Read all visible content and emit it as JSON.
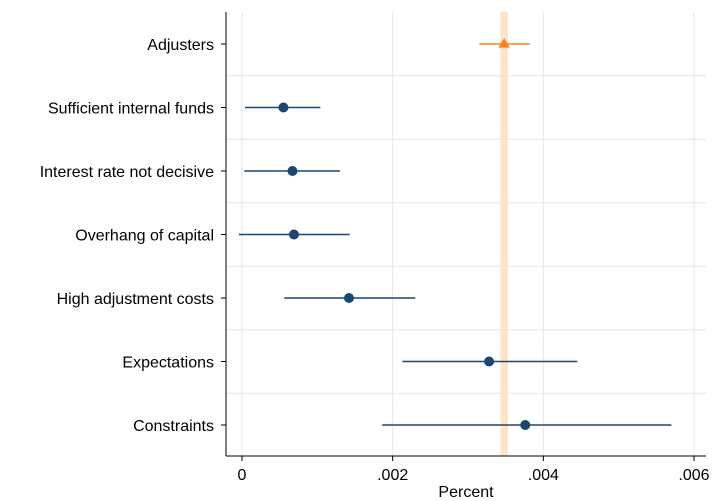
{
  "chart_data": {
    "type": "scatter",
    "title": "",
    "xlabel": "Percent",
    "ylabel": "",
    "xlim": [
      0,
      0.006
    ],
    "xticks": [
      {
        "value": 0,
        "label": "0"
      },
      {
        "value": 0.002,
        "label": ".002"
      },
      {
        "value": 0.004,
        "label": ".004"
      },
      {
        "value": 0.006,
        "label": ".006"
      }
    ],
    "grid": true,
    "legend": "none",
    "categories": [
      "Adjusters",
      "Sufficient internal funds",
      "Interest rate not decisive",
      "Overhang of capital",
      "High adjustment costs",
      "Expectations",
      "Constraints"
    ],
    "series": [
      {
        "marker": "triangle",
        "color": "#f58518",
        "points": [
          {
            "category": "Adjusters",
            "estimate": 0.00348,
            "ci_low": 0.00315,
            "ci_high": 0.00382
          }
        ]
      },
      {
        "marker": "circle",
        "color": "#1a476f",
        "points": [
          {
            "category": "Sufficient internal funds",
            "estimate": 0.00055,
            "ci_low": 4e-05,
            "ci_high": 0.00104
          },
          {
            "category": "Interest rate not decisive",
            "estimate": 0.00067,
            "ci_low": 3e-05,
            "ci_high": 0.0013
          },
          {
            "category": "Overhang of capital",
            "estimate": 0.00069,
            "ci_low": -4e-05,
            "ci_high": 0.00143
          },
          {
            "category": "High adjustment costs",
            "estimate": 0.00142,
            "ci_low": 0.00056,
            "ci_high": 0.0023
          },
          {
            "category": "Expectations",
            "estimate": 0.00328,
            "ci_low": 0.00213,
            "ci_high": 0.00445
          },
          {
            "category": "Constraints",
            "estimate": 0.00376,
            "ci_low": 0.00186,
            "ci_high": 0.0057
          }
        ]
      }
    ],
    "reference_band": {
      "from": 0.00343,
      "to": 0.00353,
      "color": "#fde3c8"
    }
  }
}
